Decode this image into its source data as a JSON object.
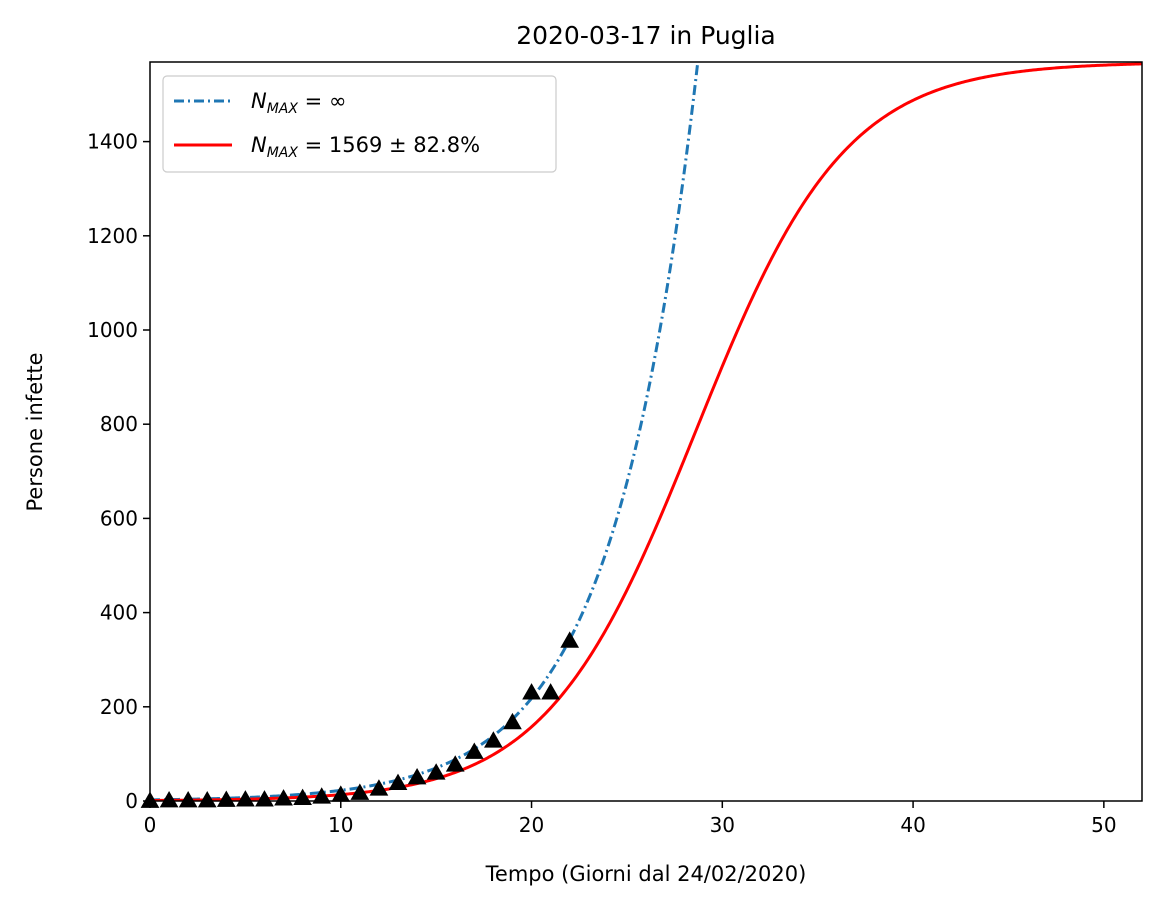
{
  "chart_data": {
    "type": "line",
    "title": "2020-03-17 in Puglia",
    "xlabel": "Tempo (Giorni dal 24/02/2020)",
    "ylabel": "Persone infette",
    "xlim": [
      0,
      52
    ],
    "ylim": [
      0,
      1569
    ],
    "xticks": [
      0,
      10,
      20,
      30,
      40,
      50
    ],
    "yticks": [
      0,
      200,
      400,
      600,
      800,
      1000,
      1200,
      1400
    ],
    "grid": false,
    "legend_position": "top-left",
    "legend": [
      {
        "base": "N",
        "sub": "MAX",
        "rest": " = ∞",
        "color": "#1f77b4",
        "style": "dash-dot"
      },
      {
        "base": "N",
        "sub": "MAX",
        "rest": " = 1569 ± 82.8%",
        "color": "#ff0000",
        "style": "solid"
      }
    ],
    "observed": {
      "marker": "triangle",
      "color": "#000000",
      "x": [
        0,
        1,
        2,
        3,
        4,
        5,
        6,
        7,
        8,
        9,
        10,
        11,
        12,
        13,
        14,
        15,
        16,
        17,
        18,
        19,
        20,
        21,
        22
      ],
      "y": [
        0,
        1,
        1,
        1,
        2,
        3,
        3,
        5,
        6,
        9,
        13,
        17,
        26,
        38,
        50,
        60,
        77,
        104,
        128,
        167,
        230,
        230,
        340
      ]
    },
    "models": {
      "exponential": {
        "a": 2.35,
        "b": 0.2265,
        "color": "#1f77b4"
      },
      "logistic": {
        "K": 1569,
        "r": 0.255,
        "t0": 28.6,
        "color": "#ff0000"
      }
    }
  }
}
